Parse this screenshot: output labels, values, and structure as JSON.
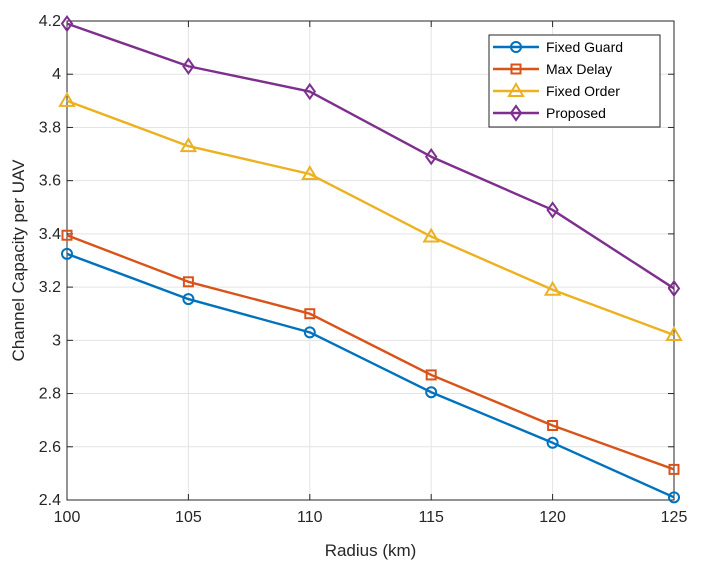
{
  "chart_data": {
    "type": "line",
    "title": "",
    "xlabel": "Radius (km)",
    "ylabel": "Channel Capacity per UAV",
    "x": [
      100,
      105,
      110,
      115,
      120,
      125
    ],
    "xlim": [
      100,
      125
    ],
    "ylim": [
      2.4,
      4.2
    ],
    "xticks": [
      100,
      105,
      110,
      115,
      120,
      125
    ],
    "yticks": [
      2.4,
      2.6,
      2.8,
      3,
      3.2,
      3.4,
      3.6,
      3.8,
      4,
      4.2
    ],
    "grid": true,
    "legend_position": "top-right",
    "series": [
      {
        "name": "Fixed Guard",
        "marker": "circle",
        "color": "#0072BD",
        "values": [
          3.325,
          3.155,
          3.03,
          2.805,
          2.615,
          2.41
        ]
      },
      {
        "name": "Max Delay",
        "marker": "square",
        "color": "#D95319",
        "values": [
          3.395,
          3.22,
          3.1,
          2.87,
          2.68,
          2.515
        ]
      },
      {
        "name": "Fixed Order",
        "marker": "triangle",
        "color": "#EDB120",
        "values": [
          3.9,
          3.73,
          3.625,
          3.39,
          3.19,
          3.02
        ]
      },
      {
        "name": "Proposed",
        "marker": "diamond",
        "color": "#7E2F8E",
        "values": [
          4.19,
          4.03,
          3.935,
          3.69,
          3.49,
          3.195
        ]
      }
    ]
  }
}
